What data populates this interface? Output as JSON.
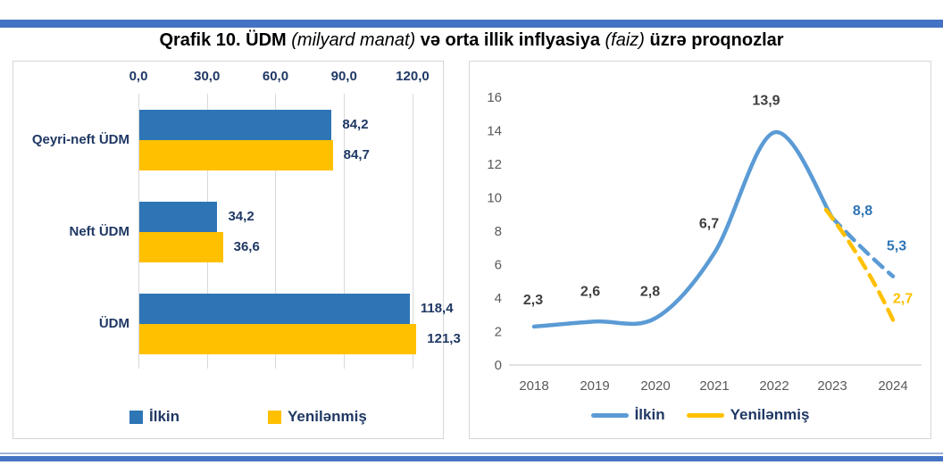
{
  "header": {
    "title_parts": [
      {
        "text": "Qrafik 10. ÜDM ",
        "style": "bold"
      },
      {
        "text": "(milyard manat)",
        "style": "italic"
      },
      {
        "text": " və orta illik inflyasiya ",
        "style": "bold"
      },
      {
        "text": "(faiz)",
        "style": "italic"
      },
      {
        "text": " üzrə proqnozlar",
        "style": "bold"
      }
    ]
  },
  "colors": {
    "top_bar": "#4472C4",
    "footer_light": "#9FB3D9",
    "footer_dark": "#4472C4",
    "bar_blue": "#2E75B6",
    "line_blue": "#5B9BD5",
    "yellow": "#FFC000",
    "navy_text": "#1F3864",
    "axis_gray": "#595959",
    "label_dark": "#3F3F3F",
    "value_blue": "#2E75B6",
    "grid_gray": "#D9D9D9"
  },
  "chart_data": [
    {
      "type": "bar",
      "orientation": "horizontal",
      "unit": "milyard manat",
      "categories": [
        "Qeyri-neft ÜDM",
        "Neft ÜDM",
        "ÜDM"
      ],
      "series": [
        {
          "name": "İlkin",
          "color_key": "bar_blue",
          "values": [
            84.2,
            34.2,
            118.4
          ],
          "labels": [
            "84,2",
            "34,2",
            "118,4"
          ]
        },
        {
          "name": "Yenilənmiş",
          "color_key": "yellow",
          "values": [
            84.7,
            36.6,
            121.3
          ],
          "labels": [
            "84,7",
            "36,6",
            "121,3"
          ]
        }
      ],
      "x_axis": {
        "position": "top",
        "ticks": [
          0,
          30,
          60,
          90,
          120
        ],
        "tick_labels": [
          "0,0",
          "30,0",
          "60,0",
          "90,0",
          "120,0"
        ],
        "max": 130
      },
      "legend": [
        "İlkin",
        "Yenilənmiş"
      ],
      "grid": true
    },
    {
      "type": "line",
      "unit": "faiz",
      "x": [
        "2018",
        "2019",
        "2020",
        "2021",
        "2022",
        "2023",
        "2024"
      ],
      "series": [
        {
          "name": "İlkin",
          "color_key": "line_blue",
          "values": [
            2.3,
            2.6,
            2.8,
            6.7,
            13.9,
            8.8,
            5.3
          ],
          "labels": [
            "2,3",
            "2,6",
            "2,8",
            "6,7",
            "13,9",
            "8,8",
            "5,3"
          ],
          "label_color_keys": [
            "label_dark",
            "label_dark",
            "label_dark",
            "label_dark",
            "label_dark",
            "value_blue",
            "value_blue"
          ],
          "solid_until_index": 5,
          "style": "solid-then-dashed"
        },
        {
          "name": "Yenilənmiş",
          "color_key": "yellow",
          "values": [
            null,
            null,
            null,
            null,
            null,
            8.8,
            2.7
          ],
          "labels": [
            null,
            null,
            null,
            null,
            null,
            null,
            "2,7"
          ],
          "label_color_keys": [
            null,
            null,
            null,
            null,
            null,
            null,
            "yellow"
          ],
          "style": "dashed"
        }
      ],
      "y_axis": {
        "min": 0,
        "max": 16,
        "step": 2,
        "tick_labels": [
          "0",
          "2",
          "4",
          "6",
          "8",
          "10",
          "12",
          "14",
          "16"
        ]
      },
      "legend": [
        "İlkin",
        "Yenilənmiş"
      ],
      "grid": false
    }
  ]
}
